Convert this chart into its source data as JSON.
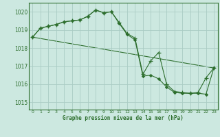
{
  "title": "Graphe pression niveau de la mer (hPa)",
  "background_color": "#cce8e0",
  "grid_color": "#aaccc4",
  "line_color": "#2d6e2d",
  "xlim": [
    -0.5,
    23.5
  ],
  "ylim": [
    1014.6,
    1020.5
  ],
  "yticks": [
    1015,
    1016,
    1017,
    1018,
    1019,
    1020
  ],
  "xticks": [
    0,
    1,
    2,
    3,
    4,
    5,
    6,
    7,
    8,
    9,
    10,
    11,
    12,
    13,
    14,
    15,
    16,
    17,
    18,
    19,
    20,
    21,
    22,
    23
  ],
  "series_plus": {
    "x": [
      0,
      1,
      2,
      3,
      4,
      5,
      6,
      7,
      8,
      9,
      10,
      11,
      12,
      13,
      14,
      15,
      16,
      17,
      18,
      19,
      20,
      21,
      22,
      23
    ],
    "y": [
      1018.6,
      1019.1,
      1019.2,
      1019.3,
      1019.45,
      1019.5,
      1019.55,
      1019.75,
      1020.1,
      1019.95,
      1020.0,
      1019.4,
      1018.8,
      1018.55,
      1016.55,
      1017.3,
      1017.75,
      1016.0,
      1015.6,
      1015.55,
      1015.5,
      1015.55,
      1016.35,
      1016.9
    ]
  },
  "series_diamond": {
    "x": [
      0,
      1,
      2,
      3,
      4,
      5,
      6,
      7,
      8,
      9,
      10,
      11,
      12,
      13,
      14,
      15,
      16,
      17,
      18,
      19,
      20,
      21,
      22,
      23
    ],
    "y": [
      1018.6,
      1019.1,
      1019.2,
      1019.3,
      1019.45,
      1019.5,
      1019.55,
      1019.75,
      1020.1,
      1019.95,
      1020.0,
      1019.35,
      1018.75,
      1018.45,
      1016.45,
      1016.5,
      1016.3,
      1015.85,
      1015.55,
      1015.5,
      1015.5,
      1015.5,
      1015.45,
      1016.9
    ]
  },
  "series_line": {
    "x": [
      0,
      23
    ],
    "y": [
      1018.6,
      1016.9
    ]
  }
}
